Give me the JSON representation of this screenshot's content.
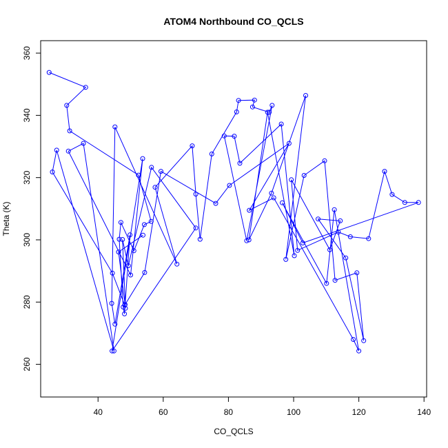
{
  "chart_data": {
    "type": "line",
    "title": "ATOM4 Northbound CO_QCLS",
    "xlabel": "CO_QCLS",
    "ylabel": "Theta (K)",
    "xlim": [
      22.4,
      140.8
    ],
    "ylim": [
      249.5,
      364
    ],
    "xticks": [
      40,
      60,
      80,
      100,
      120,
      140
    ],
    "yticks": [
      260,
      280,
      300,
      320,
      340,
      360
    ],
    "grid": false,
    "legend": "none",
    "color": "#0000ff",
    "marker": "open-circle",
    "series": [
      {
        "x": [
          25.0,
          36.2,
          30.4,
          31.3,
          52.4,
          56.3,
          54.2,
          51.0,
          47.0,
          46.5,
          47.7,
          48.1,
          49.8,
          45.2,
          44.2,
          45.2,
          64.2,
          57.5,
          68.9,
          70.0,
          71.3,
          74.9,
          82.5,
          83.1,
          88.0,
          87.4,
          92.5,
          93.4,
          85.6,
          78.7,
          81.8,
          83.5,
          96.2,
          100.2,
          92.0,
          86.3,
          93.2,
          103.7,
          97.6,
          103.2,
          109.5,
          112.7,
          119.4,
          121.5,
          116.0,
          107.5,
          114.3,
          111.1,
          99.3,
          101.2,
          113.7,
          117.4,
          123.0,
          127.9,
          130.2,
          134.1,
          138.3,
          102.8,
          96.5,
          110.1,
          112.5,
          120.0,
          118.3,
          93.9,
          86.4,
          98.6,
          80.3,
          76.1,
          59.3,
          54.3,
          48.2,
          44.4,
          26.0,
          27.3,
          44.9,
          35.5,
          30.9,
          50.0,
          53.7,
          44.3,
          70.0,
          56.4,
          49.3,
          47.5,
          48.4,
          48.3,
          46.3,
          53.8
        ],
        "y": [
          353.8,
          349.0,
          343.2,
          335.0,
          320.8,
          305.9,
          304.9,
          296.5,
          305.6,
          300.2,
          278.4,
          276.2,
          301.6,
          272.9,
          279.6,
          336.3,
          292.2,
          316.9,
          330.2,
          314.7,
          300.2,
          327.6,
          341.1,
          344.8,
          344.9,
          342.7,
          341.0,
          343.2,
          299.7,
          333.4,
          333.3,
          324.6,
          337.2,
          294.9,
          341.0,
          300.0,
          315.0,
          346.4,
          293.7,
          320.7,
          325.4,
          287.0,
          289.4,
          267.6,
          294.2,
          306.7,
          306.1,
          296.8,
          319.3,
          296.6,
          302.5,
          301.0,
          300.4,
          322.0,
          314.6,
          312.0,
          312.0,
          299.0,
          311.9,
          286.0,
          309.7,
          264.3,
          268.0,
          313.5,
          309.5,
          331.0,
          317.5,
          311.7,
          322.0,
          289.5,
          279.0,
          289.3,
          321.8,
          328.8,
          264.3,
          331.0,
          328.5,
          288.7,
          326.1,
          264.3,
          303.8,
          323.3,
          291.7,
          300.1,
          278.0,
          279.2,
          296.1,
          301.5
        ]
      }
    ]
  }
}
